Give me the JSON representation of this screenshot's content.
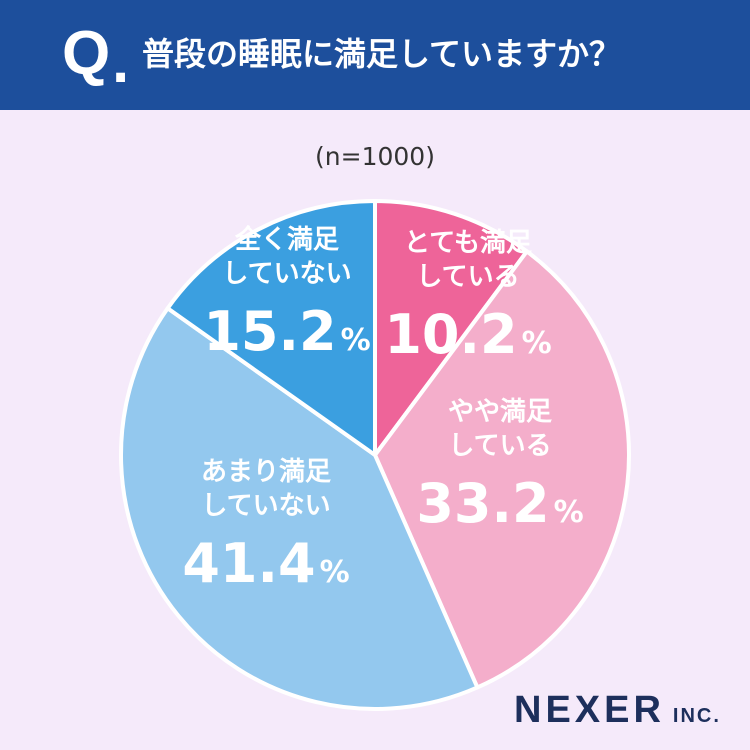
{
  "header": {
    "q_mark": "Q",
    "q_dot": ".",
    "question": "普段の睡眠に満足していますか？"
  },
  "sample_size": "(n=1000)",
  "brand": {
    "name": "NEXER",
    "suffix": "INC."
  },
  "colors": {
    "header_bg": "#1d4f9c",
    "page_bg": "#f5eafa",
    "very_satisfied": "#ee6499",
    "somewhat_satisfied": "#f4aecb",
    "not_very_satisfied": "#93c8ee",
    "not_satisfied": "#3b9fe0"
  },
  "chart_data": {
    "type": "pie",
    "start_angle": "12 o'clock",
    "direction": "clockwise",
    "slices": [
      {
        "label_line1": "とても満足",
        "label_line2": "している",
        "value": 10.2,
        "value_text": "10.2",
        "unit": "%",
        "color": "#ee6499"
      },
      {
        "label_line1": "やや満足",
        "label_line2": "している",
        "value": 33.2,
        "value_text": "33.2",
        "unit": "%",
        "color": "#f4aecb"
      },
      {
        "label_line1": "あまり満足",
        "label_line2": "していない",
        "value": 41.4,
        "value_text": "41.4",
        "unit": "%",
        "color": "#93c8ee"
      },
      {
        "label_line1": "全く満足",
        "label_line2": "していない",
        "value": 15.2,
        "value_text": "15.2",
        "unit": "%",
        "color": "#3b9fe0"
      }
    ]
  }
}
